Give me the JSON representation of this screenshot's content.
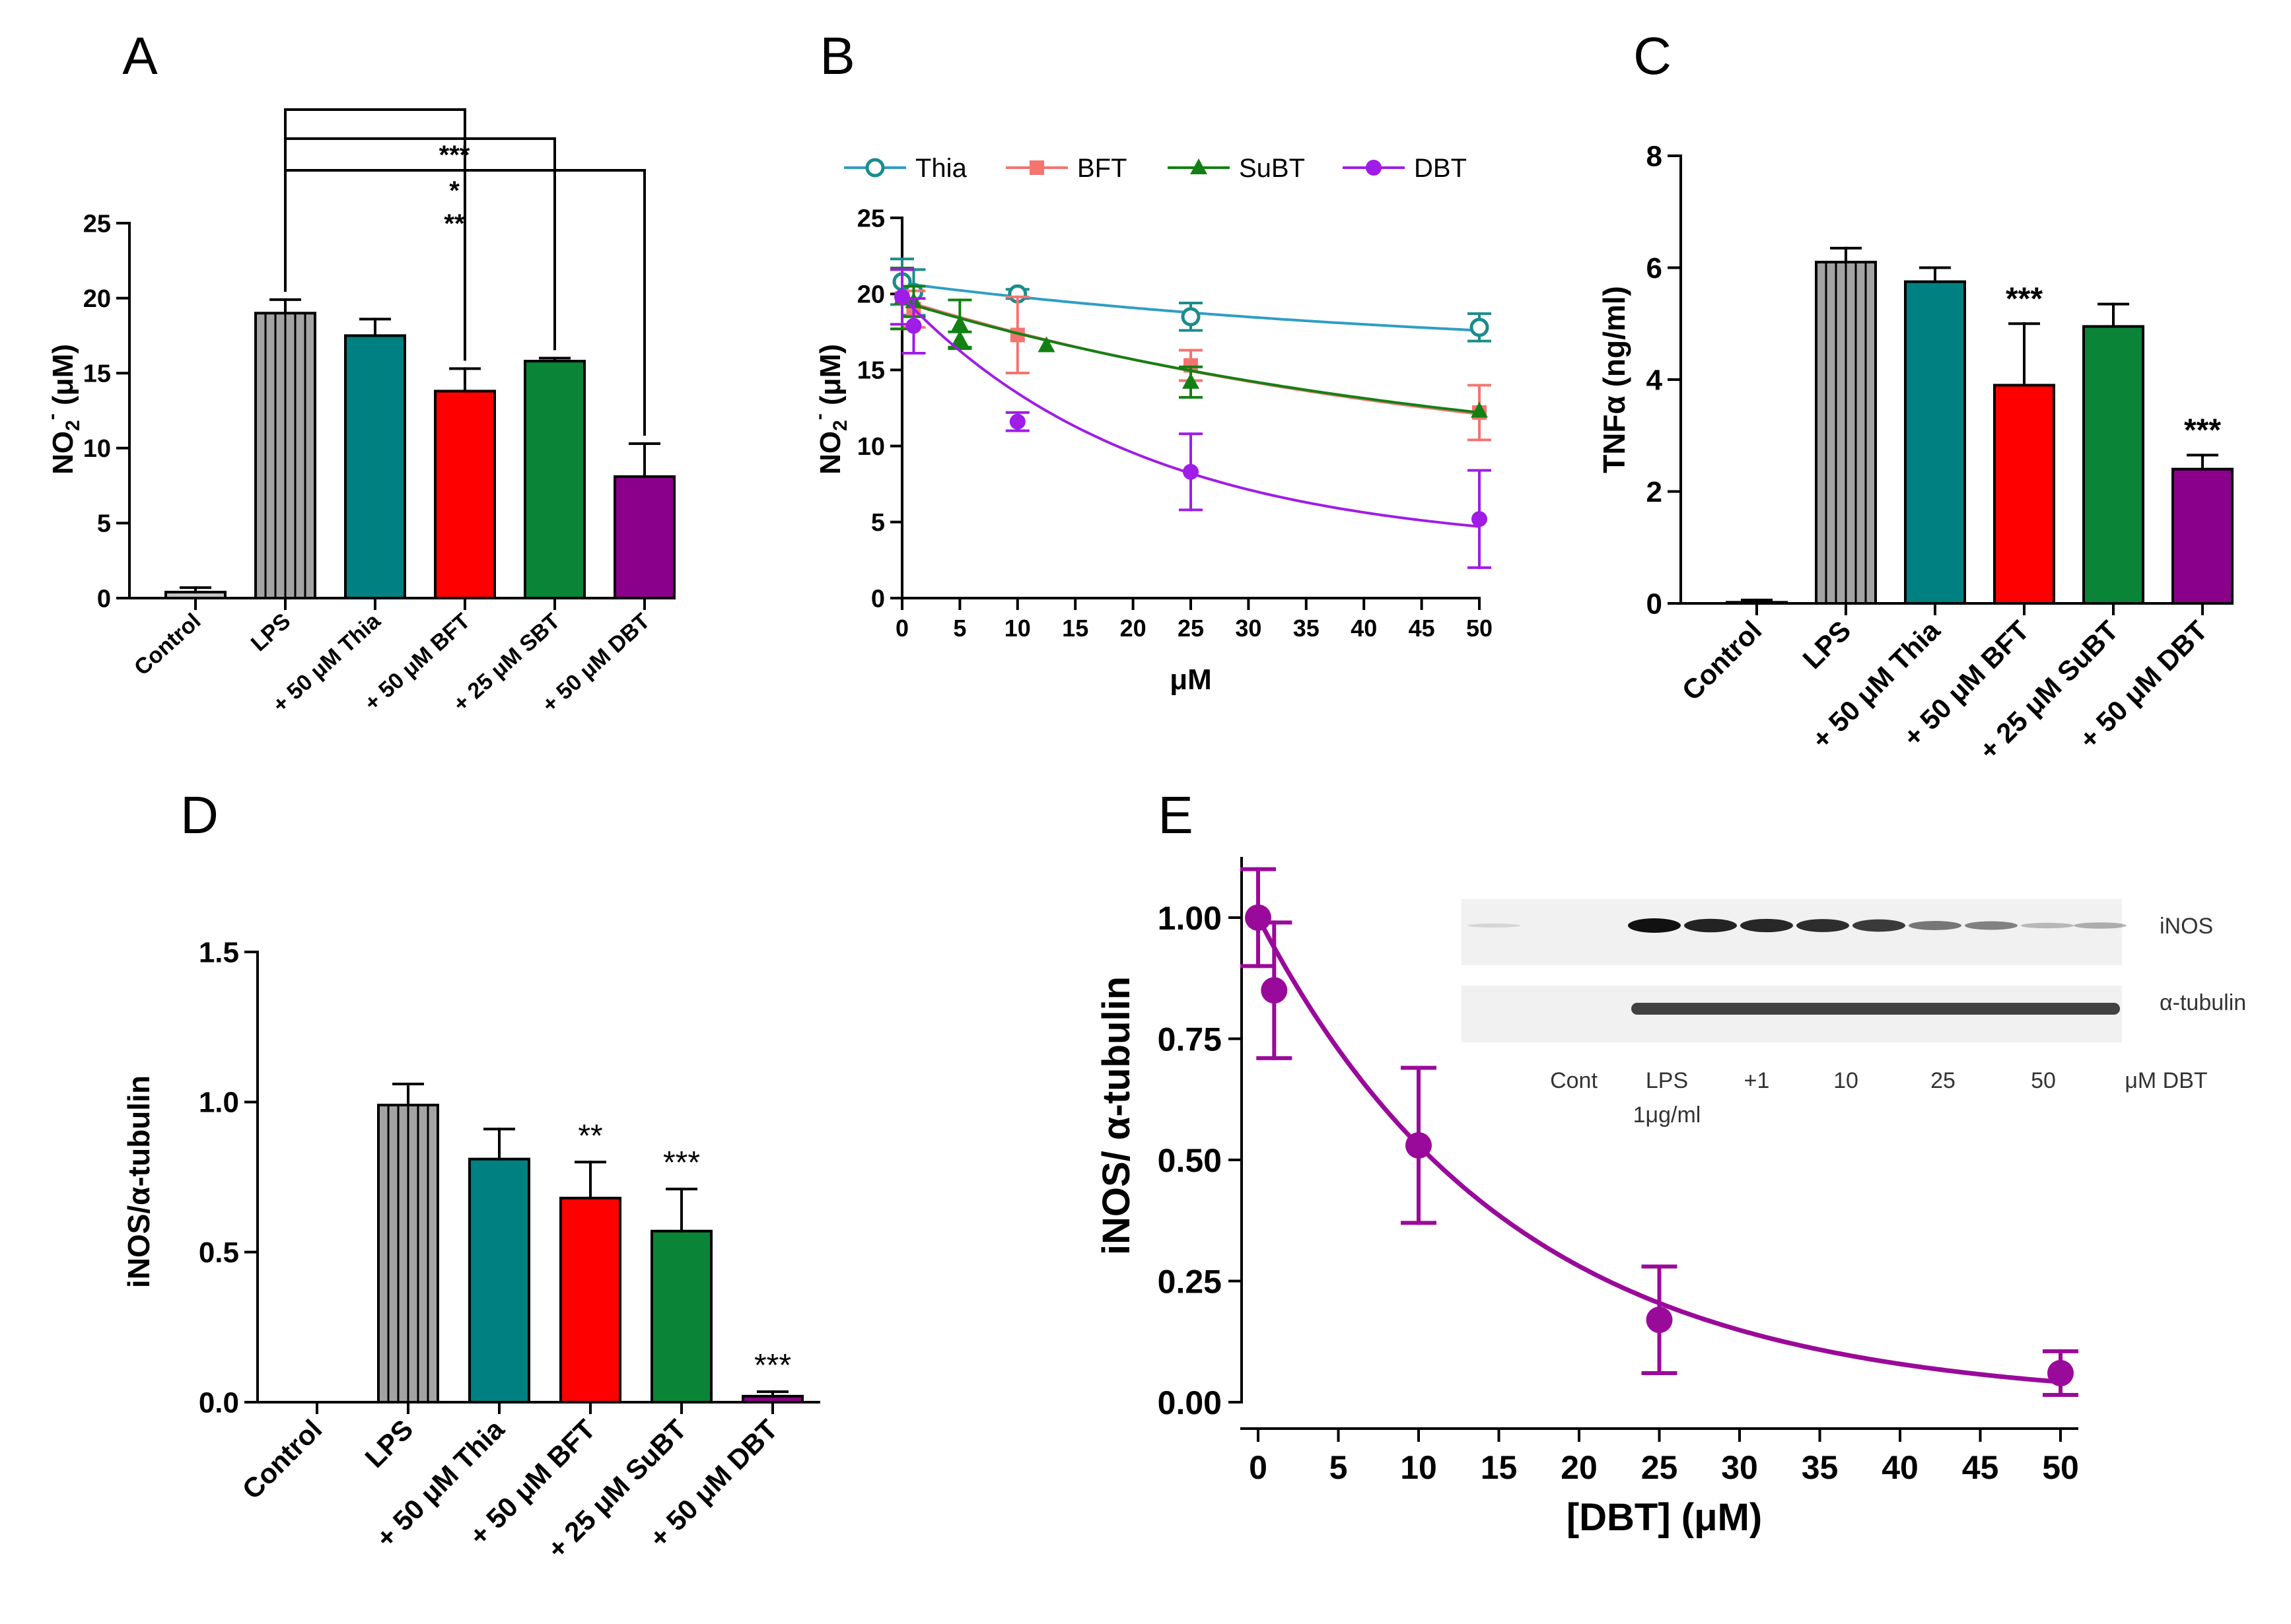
{
  "colors": {
    "control": "#c4c4c4",
    "lps": "#a3a3a3",
    "thia": "#008080",
    "bft": "#ff0000",
    "sbt": "#0a8436",
    "dbt": "#8b008b",
    "thia_line": "#2e9ec4",
    "bft_line": "#f47470",
    "sbt_line": "#138013",
    "dbt_line": "#9f1de6",
    "e_line": "#9a0a9a"
  },
  "chart_data": [
    {
      "panel": "A",
      "type": "bar",
      "ylabel_main": "NO",
      "ylabel_sub": "2",
      "ylabel_sup": "-",
      "ylabel_unit": " (μM)",
      "ylim": [
        0,
        25
      ],
      "yticks": [
        "0",
        "5",
        "10",
        "15",
        "20",
        "25"
      ],
      "categories": [
        "Control",
        "LPS",
        "+ 50 μM Thia",
        "+ 50 μM BFT",
        "+ 25 μM SBT",
        "+ 50 μM DBT"
      ],
      "values": [
        0.4,
        19.0,
        17.5,
        13.8,
        15.8,
        8.1
      ],
      "errors": [
        0.3,
        0.9,
        1.1,
        1.5,
        0.2,
        2.2
      ],
      "striped": [
        false,
        true,
        false,
        false,
        false,
        false
      ],
      "significance": [
        {
          "from": 1,
          "to": 5,
          "label": "***"
        },
        {
          "from": 1,
          "to": 4,
          "label": "*"
        },
        {
          "from": 1,
          "to": 3,
          "label": "**"
        }
      ]
    },
    {
      "panel": "B",
      "type": "line",
      "ylabel_main": "NO",
      "ylabel_sub": "2",
      "ylabel_sup": "-",
      "ylabel_unit": " (μM)",
      "xlabel": "μM",
      "ylim": [
        0,
        25
      ],
      "xlim": [
        0,
        50
      ],
      "yticks": [
        "0",
        "5",
        "10",
        "15",
        "20",
        "25"
      ],
      "xticks": [
        "0",
        "5",
        "10",
        "15",
        "20",
        "25",
        "30",
        "35",
        "40",
        "45",
        "50"
      ],
      "series": [
        {
          "name": "Thia",
          "marker": "open-circle",
          "x": [
            0,
            1,
            10,
            25,
            50
          ],
          "y": [
            20.8,
            20.1,
            20.0,
            18.5,
            17.8
          ],
          "err": [
            1.5,
            1.5,
            0.3,
            0.9,
            0.9
          ],
          "fit": [
            20.7,
            17.6
          ]
        },
        {
          "name": "BFT",
          "marker": "square",
          "x": [
            0,
            1,
            10,
            25,
            50
          ],
          "y": [
            19.7,
            19.0,
            17.3,
            15.3,
            12.2
          ],
          "err": [
            2.0,
            1.2,
            2.5,
            1.0,
            1.8
          ],
          "fit": [
            19.6,
            12.1
          ]
        },
        {
          "name": "SuBT",
          "marker": "triangle",
          "x": [
            0,
            1,
            5,
            5,
            12.5,
            25,
            50
          ],
          "y": [
            19.7,
            19.5,
            18.0,
            17.0,
            16.6,
            14.2,
            12.3
          ],
          "err": [
            2.0,
            1.0,
            1.6,
            0.5,
            0,
            1.0,
            0
          ],
          "fit": [
            19.5,
            12.2
          ]
        },
        {
          "name": "DBT",
          "marker": "filled-circle",
          "x": [
            0,
            1,
            10,
            25,
            50
          ],
          "y": [
            19.8,
            17.9,
            11.6,
            8.3,
            5.2
          ],
          "err": [
            1.8,
            1.8,
            0.6,
            2.5,
            3.2
          ],
          "fit": [
            19.8,
            5.0
          ]
        }
      ]
    },
    {
      "panel": "C",
      "type": "bar",
      "ylabel": "TNFα (ng/ml)",
      "ylim": [
        0,
        8
      ],
      "yticks": [
        "0",
        "2",
        "4",
        "6",
        "8"
      ],
      "categories": [
        "Control",
        "LPS",
        "+ 50 μM Thia",
        "+ 50 μM BFT",
        "+ 25 μM SuBT",
        "+ 50 μM DBT"
      ],
      "values": [
        0.02,
        6.1,
        5.75,
        3.9,
        4.95,
        2.4
      ],
      "errors": [
        0.04,
        0.25,
        0.25,
        1.1,
        0.4,
        0.25
      ],
      "striped": [
        false,
        true,
        false,
        false,
        false,
        false
      ],
      "annotations": [
        "",
        "",
        "",
        "***",
        "",
        "***"
      ]
    },
    {
      "panel": "D",
      "type": "bar",
      "ylabel": "iNOS/α-tubulin",
      "ylim": [
        0,
        1.5
      ],
      "yticks": [
        "0.0",
        "0.5",
        "1.0",
        "1.5"
      ],
      "categories": [
        "Control",
        "LPS",
        "+ 50 μM Thia",
        "+ 50 μM BFT",
        "+ 25 μM SuBT",
        "+ 50 μM DBT"
      ],
      "values": [
        0,
        0.99,
        0.81,
        0.68,
        0.57,
        0.02
      ],
      "errors": [
        0,
        0.07,
        0.1,
        0.12,
        0.14,
        0.015
      ],
      "striped": [
        false,
        true,
        false,
        false,
        false,
        false
      ],
      "annotations": [
        "",
        "",
        "",
        "**",
        "***",
        "***"
      ]
    },
    {
      "panel": "E",
      "type": "scatter",
      "ylabel": "iNOS/ α-tubulin",
      "xlabel": "[DBT] (μM)",
      "ylim": [
        0,
        1.1
      ],
      "xlim": [
        0,
        50
      ],
      "yticks": [
        "0.00",
        "0.25",
        "0.50",
        "0.75",
        "1.00"
      ],
      "xticks": [
        "0",
        "5",
        "10",
        "15",
        "20",
        "25",
        "30",
        "35",
        "40",
        "45",
        "50"
      ],
      "x": [
        0,
        1,
        10,
        25,
        50
      ],
      "y": [
        1.0,
        0.85,
        0.53,
        0.17,
        0.06
      ],
      "err": [
        0.1,
        0.14,
        0.16,
        0.11,
        0.045
      ],
      "fit": {
        "a": 1.0,
        "k": 0.0635
      },
      "blot": {
        "band1_label": "iNOS",
        "band2_label": "α-tubulin",
        "lanes": [
          "Cont",
          "LPS",
          "+1",
          "10",
          "25",
          "50",
          "μM DBT"
        ],
        "sublabel": "1μg/ml"
      }
    }
  ],
  "panel_labels": [
    "A",
    "B",
    "C",
    "D",
    "E"
  ]
}
